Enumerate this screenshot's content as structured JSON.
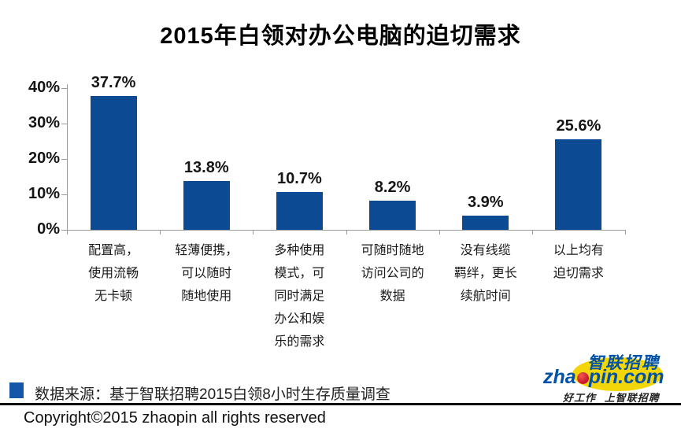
{
  "title": "2015年白领对办公电脑的迫切需求",
  "chart_data": {
    "type": "bar",
    "title": "2015年白领对办公电脑的迫切需求",
    "categories": [
      "配置高，使用流畅无卡顿",
      "轻薄便携，可以随时随地使用",
      "多种使用模式，可同时满足办公和娱乐的需求",
      "可随时随地访问公司的数据",
      "没有线缆羁绊，更长续航时间",
      "以上均有迫切需求"
    ],
    "category_lines": [
      [
        "配置高，",
        "使用流畅",
        "无卡顿"
      ],
      [
        "轻薄便携，",
        "可以随时",
        "随地使用"
      ],
      [
        "多种使用",
        "模式，可",
        "同时满足",
        "办公和娱",
        "乐的需求"
      ],
      [
        "可随时随地",
        "访问公司的",
        "数据"
      ],
      [
        "没有线缆",
        "羁绊，更长",
        "续航时间"
      ],
      [
        "以上均有",
        "迫切需求"
      ]
    ],
    "values": [
      37.7,
      13.8,
      10.7,
      8.2,
      3.9,
      25.6
    ],
    "value_labels": [
      "37.7%",
      "13.8%",
      "10.7%",
      "8.2%",
      "3.9%",
      "25.6%"
    ],
    "y_ticks": [
      "0%",
      "10%",
      "20%",
      "30%",
      "40%"
    ],
    "ylim": [
      0,
      40
    ],
    "xlabel": "",
    "ylabel": "",
    "grid": false,
    "legend_position": "none",
    "bar_color": "#0d4a94",
    "axis_color": "#9a9a9a"
  },
  "footer": {
    "source_text": "数据来源：基于智联招聘2015白领8小时生存质量调查",
    "source_swatch_color": "#1457a8",
    "copyright_text": "Copyright©2015 zhaopin all rights reserved"
  },
  "logo": {
    "brand_cn": "智联招聘",
    "url_prefix": "zha",
    "url_suffix": "pin.com",
    "tagline": "好工作 上智联招聘",
    "blue": "#0052a8",
    "yellow": "#f3d609",
    "red": "#c8102e"
  }
}
